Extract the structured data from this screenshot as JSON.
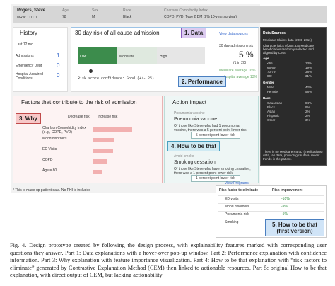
{
  "header": {
    "name": "Rogers, Steve",
    "mrn": "MRN: 111111",
    "age_label": "Age",
    "age": "78",
    "sex_label": "Sex",
    "sex": "M",
    "race_label": "Race",
    "race": "Black",
    "cci_label": "Charlson Comorbidity Index",
    "cci": "COPD, PVD, Type 2 DM (2% 10-year survival)"
  },
  "history": {
    "title": "History",
    "period": "Last 12 mo",
    "rows": [
      [
        "Admissions",
        "1"
      ],
      [
        "Emergency Dept",
        "0"
      ],
      [
        "Hospital Acquired Conditions",
        "0"
      ]
    ]
  },
  "risk": {
    "title": "30 day risk of all cause admission",
    "link": "View data sources",
    "levels": [
      "Low",
      "Moderate",
      "High"
    ],
    "risk_label": "30 day admission risk",
    "risk_value": "5 %",
    "risk_ratio": "(1 in 20)",
    "medicare": "Medicare average 16%",
    "hospital": "Hospital average 13%",
    "confidence": "Risk score confidence: Good (+/- 2%)"
  },
  "popup": {
    "title": "Data Sources",
    "source": "Medicare Claims data (2008-2011)",
    "desc": "Characteristics of 255,330 Medicare beneficiaries randomly selected and aligned by CMS.",
    "groups": [
      {
        "name": "Age",
        "rows": [
          [
            "<65",
            "13%"
          ],
          [
            "65-69",
            "19%"
          ],
          [
            "70-79",
            "38%"
          ],
          [
            "80+",
            "31%"
          ]
        ]
      },
      {
        "name": "Gender",
        "rows": [
          [
            "Male",
            "42%"
          ],
          [
            "Female",
            "58%"
          ]
        ]
      },
      {
        "name": "Race",
        "rows": [
          [
            "Caucasian",
            "84%"
          ],
          [
            "Black",
            "9%"
          ],
          [
            "Asian",
            "2%"
          ],
          [
            "Hispanic",
            "2%"
          ],
          [
            "Other",
            "3%"
          ]
        ]
      }
    ],
    "note": "There is no Medicare Part D (medications) data, lab data, physiological data, recent trends in the patient."
  },
  "factors": {
    "title": "Factors that contribute to the risk of admission",
    "decrease": "Decrease risk",
    "increase": "Increase risk",
    "items": [
      "Charlson Comorbidity Index (e.g., COPD, PVD)",
      "Mood disorders",
      "ED Visits",
      "COPD",
      "Age = 80"
    ]
  },
  "action": {
    "title": "Action impact",
    "items": [
      {
        "category": "Pneumonia vaccine",
        "name": "Pneumonia vaccine",
        "text": "Of those like Steve who had 1 pneumonia vaccine, there was a 5 percent point lower risk.",
        "button": "5 percent point lower risk"
      },
      {
        "category": "Avoid smoke",
        "name": "Smoking cessation",
        "text": "Of those like Steve who have smoking cessation, there was a 1 percent point lower risk.",
        "button": "1 percent point lower risk"
      }
    ],
    "link": "View Programs"
  },
  "disclaimer": "* This is made up patient data. No PHI is included",
  "table": {
    "headers": [
      "Risk factor to eliminate",
      "Risk improvement"
    ],
    "rows": [
      [
        "ED visits",
        "-10%"
      ],
      [
        "Mood disorders",
        "-9%"
      ],
      [
        "Pneumonia risk",
        "-5%"
      ],
      [
        "Smoking",
        "-1%"
      ]
    ]
  },
  "labels": [
    "1. Data",
    "2. Performance",
    "3. Why",
    "4. How to be that",
    "5. How to be that (first version)"
  ],
  "caption": "Fig. 4. Design prototype created by following the design process, with explainability features marked with corresponding user questions they answer. Part 1: Data explanations with a hover-over pop-up window. Part 2: Performance explanation with confidence information. Part 3: Why explanation with feature importance visualization. Part 4: How to be that explanation with “risk factors to eliminate” generated by Contrastive Explanation Method (CEM) then linked to actionable resources. Part 5: original How to be that explanation, with direct output of CEM, but lacking actionability"
}
